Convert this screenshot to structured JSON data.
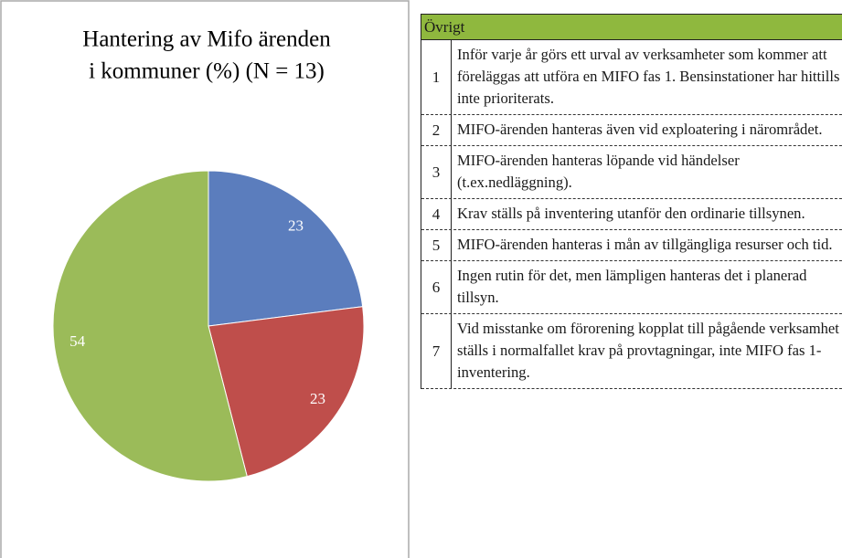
{
  "chart_data": {
    "type": "pie",
    "title": [
      "Hantering av Mifo ärenden",
      "i kommuner (%) (N = 13)"
    ],
    "values": [
      23,
      23,
      54
    ],
    "colors": [
      "#5b7dbd",
      "#bf4e4b",
      "#9bbb59"
    ]
  },
  "table": {
    "header": "Övrigt",
    "rows": [
      {
        "number": "1",
        "text": "Inför varje år görs ett urval av verksamheter som kommer att föreläggas att utföra en MIFO fas 1. Bensinstationer har hittills inte prioriterats."
      },
      {
        "number": "2",
        "text": "MIFO-ärenden hanteras även vid exploatering i närområdet."
      },
      {
        "number": "3",
        "text": "MIFO-ärenden hanteras löpande vid händelser (t.ex.nedläggning)."
      },
      {
        "number": "4",
        "text": "Krav ställs på inventering utanför den ordinarie tillsynen."
      },
      {
        "number": "5",
        "text": "MIFO-ärenden hanteras i mån av tillgängliga resurser och tid."
      },
      {
        "number": "6",
        "text": "Ingen rutin för det, men lämpligen hanteras det i planerad tillsyn."
      },
      {
        "number": "7",
        "text": "Vid misstanke om förorening kopplat till pågående verksamhet ställs i normalfallet krav på provtagningar, inte MIFO fas 1-inventering."
      }
    ]
  }
}
